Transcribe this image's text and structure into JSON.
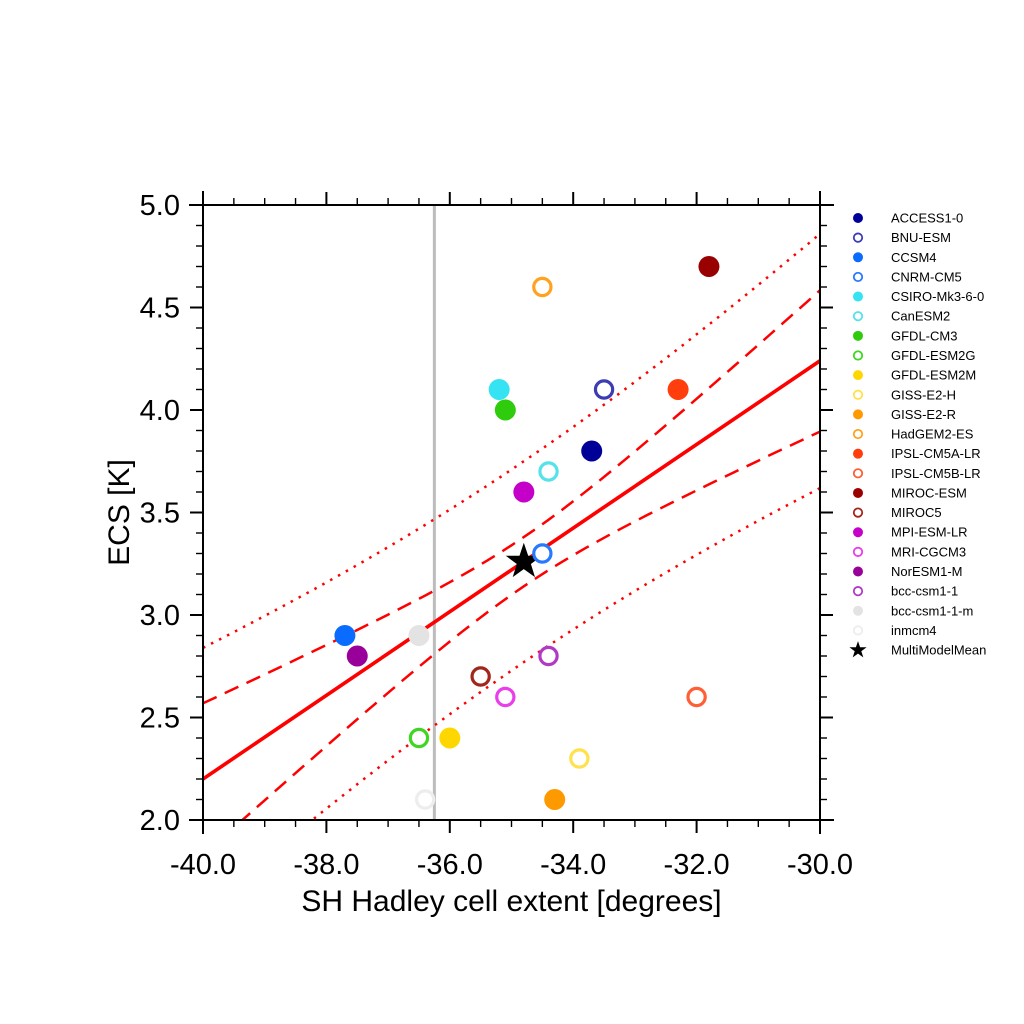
{
  "figure": {
    "background": "#ffffff",
    "accent_red": "#ff0000",
    "reference_gray": "#bcbcbc"
  },
  "chart_data": {
    "type": "scatter",
    "title": "",
    "xlabel": "SH Hadley cell extent [degrees]",
    "ylabel": "ECS [K]",
    "xlim": [
      -40.0,
      -30.0
    ],
    "ylim": [
      2.0,
      5.0
    ],
    "grid": false,
    "legend_position": "right-outside",
    "x_ticks": {
      "major": [
        -40,
        -38,
        -36,
        -34,
        -32,
        -30
      ],
      "labels": [
        "-40.0",
        "-38.0",
        "-36.0",
        "-34.0",
        "-32.0",
        "-30.0"
      ],
      "minor_step": 0.5
    },
    "y_ticks": {
      "major": [
        2.0,
        2.5,
        3.0,
        3.5,
        4.0,
        4.5,
        5.0
      ],
      "labels": [
        "2.0",
        "2.5",
        "3.0",
        "3.5",
        "4.0",
        "4.5",
        "5.0"
      ],
      "minor_step": 0.1
    },
    "reference_line": {
      "orientation": "vertical",
      "x": -36.25,
      "color": "#bcbcbc"
    },
    "regression_line": {
      "x": [
        -40.0,
        -30.0
      ],
      "y": [
        2.2,
        4.24
      ],
      "color": "#ff0000"
    },
    "confidence_bands": [
      {
        "style": "dashed",
        "center_x": -34.8,
        "center_y": 3.26,
        "slope": 0.204,
        "half_width_at_center": 0.12,
        "spread": 0.0673,
        "color": "#ff0000"
      },
      {
        "style": "dotted",
        "center_x": -34.8,
        "center_y": 3.26,
        "slope": 0.204,
        "half_width_at_center": 0.49,
        "spread": 0.0792,
        "color": "#ff0000"
      }
    ],
    "series": [
      {
        "name": "ACCESS1-0",
        "x": -33.7,
        "y": 3.8,
        "color": "#000099",
        "filled": true,
        "marker": "circle"
      },
      {
        "name": "BNU-ESM",
        "x": -33.5,
        "y": 4.1,
        "color": "#3c3cb4",
        "filled": false,
        "marker": "circle"
      },
      {
        "name": "CCSM4",
        "x": -37.7,
        "y": 2.9,
        "color": "#0a6bff",
        "filled": true,
        "marker": "circle"
      },
      {
        "name": "CNRM-CM5",
        "x": -34.5,
        "y": 3.3,
        "color": "#2979ff",
        "filled": false,
        "marker": "circle"
      },
      {
        "name": "CSIRO-Mk3-6-0",
        "x": -35.2,
        "y": 4.1,
        "color": "#35e3f2",
        "filled": true,
        "marker": "circle"
      },
      {
        "name": "CanESM2",
        "x": -34.4,
        "y": 3.7,
        "color": "#55e2e8",
        "filled": false,
        "marker": "circle"
      },
      {
        "name": "GFDL-CM3",
        "x": -35.1,
        "y": 4.0,
        "color": "#2fcc0d",
        "filled": true,
        "marker": "circle"
      },
      {
        "name": "GFDL-ESM2G",
        "x": -36.5,
        "y": 2.4,
        "color": "#3fd622",
        "filled": false,
        "marker": "circle"
      },
      {
        "name": "GFDL-ESM2M",
        "x": -36.0,
        "y": 2.4,
        "color": "#ffd700",
        "filled": true,
        "marker": "circle"
      },
      {
        "name": "GISS-E2-H",
        "x": -33.9,
        "y": 2.3,
        "color": "#ffe14d",
        "filled": false,
        "marker": "circle"
      },
      {
        "name": "GISS-E2-R",
        "x": -34.3,
        "y": 2.1,
        "color": "#ff9900",
        "filled": true,
        "marker": "circle"
      },
      {
        "name": "HadGEM2-ES",
        "x": -34.5,
        "y": 4.6,
        "color": "#ffa21f",
        "filled": false,
        "marker": "circle"
      },
      {
        "name": "IPSL-CM5A-LR",
        "x": -32.3,
        "y": 4.1,
        "color": "#ff3d0d",
        "filled": true,
        "marker": "circle"
      },
      {
        "name": "IPSL-CM5B-LR",
        "x": -32.0,
        "y": 2.6,
        "color": "#ff5f35",
        "filled": false,
        "marker": "circle"
      },
      {
        "name": "MIROC-ESM",
        "x": -31.8,
        "y": 4.7,
        "color": "#990000",
        "filled": true,
        "marker": "circle"
      },
      {
        "name": "MIROC5",
        "x": -35.5,
        "y": 2.7,
        "color": "#a1261b",
        "filled": false,
        "marker": "circle"
      },
      {
        "name": "MPI-ESM-LR",
        "x": -34.8,
        "y": 3.6,
        "color": "#c400c9",
        "filled": true,
        "marker": "circle"
      },
      {
        "name": "MRI-CGCM3",
        "x": -35.1,
        "y": 2.6,
        "color": "#e93ee9",
        "filled": false,
        "marker": "circle"
      },
      {
        "name": "NorESM1-M",
        "x": -37.5,
        "y": 2.8,
        "color": "#990099",
        "filled": true,
        "marker": "circle"
      },
      {
        "name": "bcc-csm1-1",
        "x": -34.4,
        "y": 2.8,
        "color": "#b13ac4",
        "filled": false,
        "marker": "circle"
      },
      {
        "name": "bcc-csm1-1-m",
        "x": -36.5,
        "y": 2.9,
        "color": "#e3e3e3",
        "filled": true,
        "marker": "circle"
      },
      {
        "name": "inmcm4",
        "x": -36.4,
        "y": 2.1,
        "color": "#ededed",
        "filled": false,
        "marker": "circle"
      },
      {
        "name": "MultiModelMean",
        "x": -34.8,
        "y": 3.26,
        "color": "#000000",
        "filled": true,
        "marker": "star"
      }
    ]
  }
}
